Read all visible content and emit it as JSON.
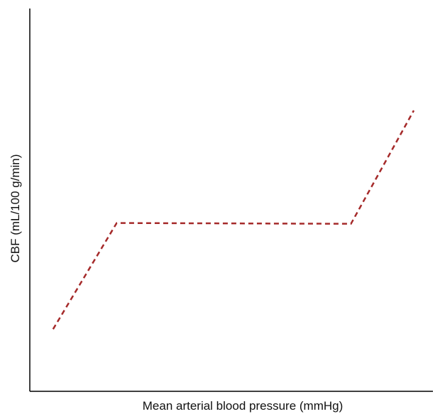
{
  "chart_data": {
    "type": "line",
    "title": "",
    "xlabel": "Mean arterial blood pressure (mmHg)",
    "ylabel": "CBF (mL/100 g/min)",
    "ticks_shown": false,
    "grid": false,
    "legend": "none",
    "series": [
      {
        "x": [
          0.0606,
          0.2263,
          0.8364,
          1.0
        ],
        "y": [
          0.1625,
          0.4396,
          0.4376,
          0.7335
        ],
        "line_style": "dashed",
        "color": "#a52a2a"
      }
    ],
    "xlim": [
      0,
      1.05
    ],
    "ylim": [
      0,
      1.0
    ]
  }
}
